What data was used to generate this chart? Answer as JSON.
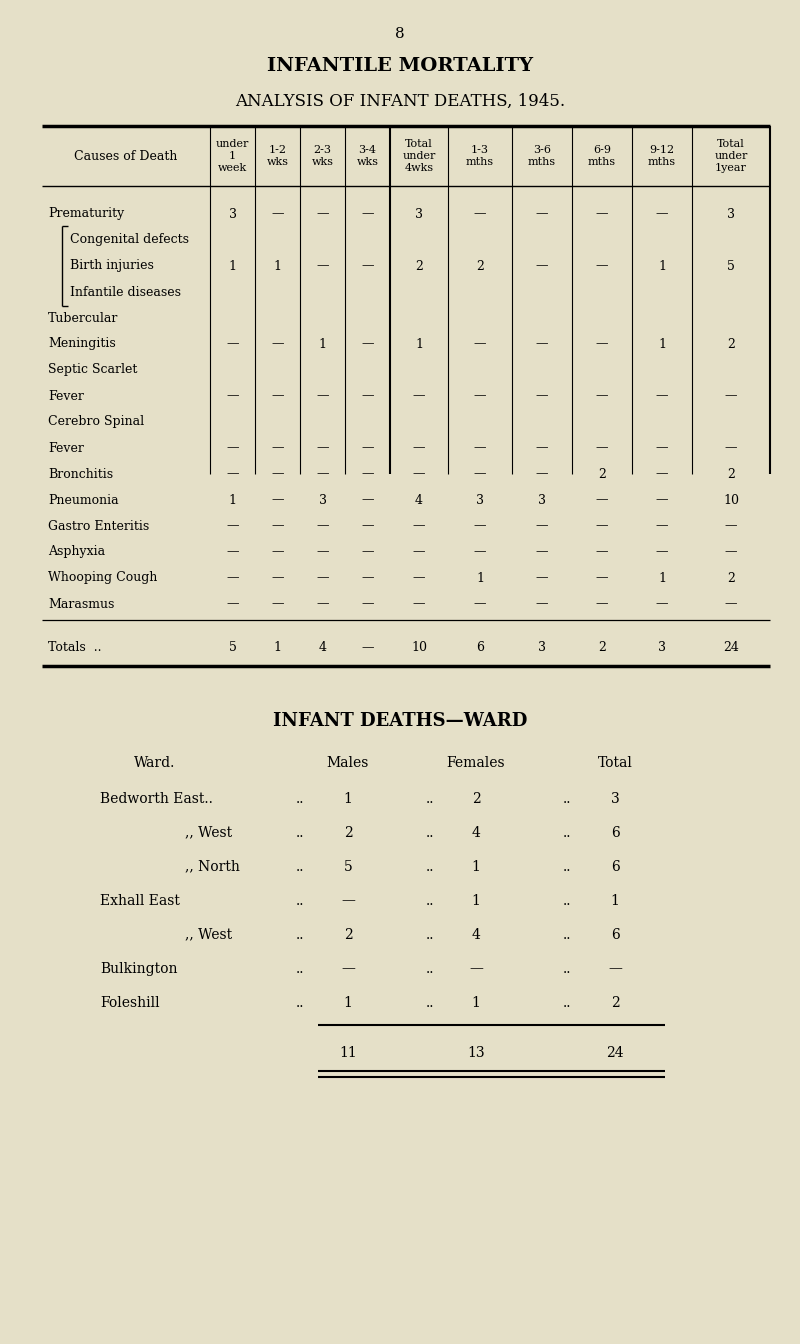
{
  "bg_color": "#e5e0c8",
  "page_number": "8",
  "title1": "INFANTILE MORTALITY",
  "title2": "ANALYSIS OF INFANT DEATHS, 1945.",
  "col_headers": [
    "Causes of Death",
    "under\n1\nweek",
    "1-2\nwks",
    "2-3\nwks",
    "3-4\nwks",
    "Total\nunder\n4wks",
    "1-3\nmths",
    "3-6\nmths",
    "6-9\nmths",
    "9-12\nmths",
    "Total\nunder\n1year"
  ],
  "table1_rows": [
    [
      "Prematurity",
      "3",
      "—",
      "—",
      "—",
      "3",
      "—",
      "—",
      "—",
      "—",
      "3"
    ],
    [
      "Congenital defects",
      "",
      "",
      "",
      "",
      "",
      "",
      "",
      "",
      "",
      ""
    ],
    [
      "Birth injuries",
      "1",
      "1",
      "—",
      "—",
      "2",
      "2",
      "—",
      "—",
      "1",
      "5"
    ],
    [
      "Infantile diseases",
      "",
      "",
      "",
      "",
      "",
      "",
      "",
      "",
      "",
      ""
    ],
    [
      "Tubercular",
      "",
      "",
      "",
      "",
      "",
      "",
      "",
      "",
      "",
      ""
    ],
    [
      "Meningitis",
      "—",
      "—",
      "1",
      "—",
      "1",
      "—",
      "—",
      "—",
      "1",
      "2"
    ],
    [
      "Septic Scarlet",
      "",
      "",
      "",
      "",
      "",
      "",
      "",
      "",
      "",
      ""
    ],
    [
      "Fever",
      "—",
      "—",
      "—",
      "—",
      "—",
      "—",
      "—",
      "—",
      "—",
      "—"
    ],
    [
      "Cerebro Spinal",
      "",
      "",
      "",
      "",
      "",
      "",
      "",
      "",
      "",
      ""
    ],
    [
      "Fever",
      "—",
      "—",
      "—",
      "—",
      "—",
      "—",
      "—",
      "—",
      "—",
      "—"
    ],
    [
      "Bronchitis",
      "—",
      "—",
      "—",
      "—",
      "—",
      "—",
      "—",
      "2",
      "—",
      "2"
    ],
    [
      "Pneumonia",
      "1",
      "—",
      "3",
      "—",
      "4",
      "3",
      "3",
      "—",
      "—",
      "10"
    ],
    [
      "Gastro Enteritis",
      "—",
      "—",
      "—",
      "—",
      "—",
      "—",
      "—",
      "—",
      "—",
      "—"
    ],
    [
      "Asphyxia",
      "—",
      "—",
      "—",
      "—",
      "—",
      "—",
      "—",
      "—",
      "—",
      "—"
    ],
    [
      "Whooping Cough",
      "—",
      "—",
      "—",
      "—",
      "—",
      "1",
      "—",
      "—",
      "1",
      "2"
    ],
    [
      "Marasmus",
      "—",
      "—",
      "—",
      "—",
      "—",
      "—",
      "—",
      "—",
      "—",
      "—"
    ]
  ],
  "brace_rows": [
    1,
    2,
    3
  ],
  "table1_totals": [
    "Totals  ..",
    "5",
    "1",
    "4",
    "—",
    "10",
    "6",
    "3",
    "2",
    "3",
    "24"
  ],
  "table2_title": "INFANT DEATHS—WARD",
  "table2_col_headers": [
    "Ward.",
    "Males",
    "Females",
    "Total"
  ],
  "table2_rows": [
    [
      "Bedworth East..",
      "..",
      "1",
      "..",
      "2",
      "..",
      "3"
    ],
    [
      ",, West",
      "..",
      "2",
      "..",
      "4",
      "..",
      "6"
    ],
    [
      ",, North",
      "..",
      "5",
      "..",
      "1",
      "..",
      "6"
    ],
    [
      "Exhall East",
      "..",
      "—",
      "..",
      "1",
      "..",
      "1"
    ],
    [
      ",, West",
      "..",
      "2",
      "..",
      "4",
      "..",
      "6"
    ],
    [
      "Bulkington",
      "..",
      "—",
      "..",
      "—",
      "..",
      "—"
    ],
    [
      "Foleshill",
      "..",
      "1",
      "..",
      "1",
      "..",
      "2"
    ]
  ],
  "table2_totals": [
    "11",
    "13",
    "24"
  ]
}
